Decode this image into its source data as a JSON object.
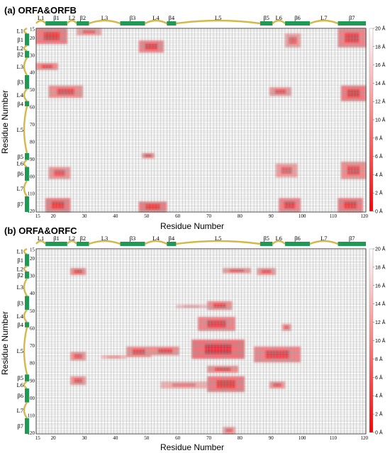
{
  "colors": {
    "grid": "#9a9a9a",
    "loop": "#d4b84a",
    "strand": "#1e9a55",
    "contact": "#e8141c",
    "cb_top": "#ffffff",
    "cb_bottom": "#ff0000"
  },
  "colorbar_labels": [
    "20 Å",
    "18 Å",
    "16 Å",
    "14 Å",
    "12 Å",
    "10 Å",
    "8 Å",
    "6 Å",
    "4 Å",
    "2 Å",
    "0 Å"
  ],
  "secondary_structure": [
    {
      "type": "loop",
      "label": "L1",
      "start": 15,
      "end": 18
    },
    {
      "type": "strand",
      "label": "β1",
      "start": 18,
      "end": 25
    },
    {
      "type": "loop",
      "label": "L2",
      "start": 25,
      "end": 28
    },
    {
      "type": "strand",
      "label": "β2",
      "start": 28,
      "end": 32
    },
    {
      "type": "loop",
      "label": "L3",
      "start": 32,
      "end": 42
    },
    {
      "type": "strand",
      "label": "β3",
      "start": 42,
      "end": 50
    },
    {
      "type": "loop",
      "label": "L4",
      "start": 50,
      "end": 57
    },
    {
      "type": "strand",
      "label": "β4",
      "start": 57,
      "end": 60
    },
    {
      "type": "loop",
      "label": "L5",
      "start": 60,
      "end": 87
    },
    {
      "type": "strand",
      "label": "β5",
      "start": 87,
      "end": 91
    },
    {
      "type": "loop",
      "label": "L6",
      "start": 91,
      "end": 95
    },
    {
      "type": "strand",
      "label": "β6",
      "start": 95,
      "end": 103
    },
    {
      "type": "loop",
      "label": "L7",
      "start": 103,
      "end": 112
    },
    {
      "type": "strand",
      "label": "β7",
      "start": 112,
      "end": 121
    }
  ],
  "chart_data": [
    {
      "type": "heatmap",
      "title": "(a) ORFA&ORFB",
      "xlabel": "Residue Number",
      "ylabel": "Residue Number",
      "xlim": [
        15,
        121
      ],
      "ylim": [
        15,
        121
      ],
      "xticks": [
        15,
        20,
        30,
        40,
        50,
        60,
        70,
        80,
        90,
        100,
        110,
        120
      ],
      "yticks": [
        15,
        20,
        30,
        40,
        50,
        60,
        70,
        80,
        90,
        100,
        110,
        120
      ],
      "color_range": [
        0,
        20
      ],
      "contact_regions": [
        {
          "x": [
            15,
            25
          ],
          "y": [
            15,
            24
          ],
          "dist": 6
        },
        {
          "x": [
            28,
            36
          ],
          "y": [
            15,
            19
          ],
          "dist": 10
        },
        {
          "x": [
            15,
            22
          ],
          "y": [
            35,
            39
          ],
          "dist": 8
        },
        {
          "x": [
            48,
            56
          ],
          "y": [
            22,
            29
          ],
          "dist": 7
        },
        {
          "x": [
            95,
            100
          ],
          "y": [
            18,
            26
          ],
          "dist": 10
        },
        {
          "x": [
            112,
            121
          ],
          "y": [
            15,
            26
          ],
          "dist": 7
        },
        {
          "x": [
            19,
            30
          ],
          "y": [
            48,
            55
          ],
          "dist": 8
        },
        {
          "x": [
            90,
            97
          ],
          "y": [
            49,
            54
          ],
          "dist": 9
        },
        {
          "x": [
            113,
            121
          ],
          "y": [
            48,
            57
          ],
          "dist": 6
        },
        {
          "x": [
            49,
            53
          ],
          "y": [
            87,
            90
          ],
          "dist": 8
        },
        {
          "x": [
            19,
            26
          ],
          "y": [
            95,
            102
          ],
          "dist": 9
        },
        {
          "x": [
            92,
            99
          ],
          "y": [
            93,
            101
          ],
          "dist": 10
        },
        {
          "x": [
            113,
            121
          ],
          "y": [
            92,
            102
          ],
          "dist": 8
        },
        {
          "x": [
            18,
            26
          ],
          "y": [
            113,
            121
          ],
          "dist": 6
        },
        {
          "x": [
            48,
            57
          ],
          "y": [
            115,
            121
          ],
          "dist": 6
        },
        {
          "x": [
            93,
            100
          ],
          "y": [
            113,
            121
          ],
          "dist": 7
        },
        {
          "x": [
            112,
            120
          ],
          "y": [
            113,
            121
          ],
          "dist": 6
        }
      ]
    },
    {
      "type": "heatmap",
      "title": "(b) ORFA&ORFC",
      "xlabel": "Residue Number",
      "ylabel": "Residue Number",
      "xlim": [
        15,
        121
      ],
      "ylim": [
        15,
        121
      ],
      "xticks": [
        15,
        20,
        30,
        40,
        50,
        60,
        70,
        80,
        90,
        100,
        110,
        120
      ],
      "yticks": [
        15,
        20,
        30,
        40,
        50,
        60,
        70,
        80,
        90,
        100,
        110,
        120
      ],
      "color_range": [
        0,
        20
      ],
      "contact_regions": [
        {
          "x": [
            26,
            31
          ],
          "y": [
            26,
            30
          ],
          "dist": 8
        },
        {
          "x": [
            75,
            84
          ],
          "y": [
            26,
            29
          ],
          "dist": 9
        },
        {
          "x": [
            86,
            92
          ],
          "y": [
            26,
            30
          ],
          "dist": 9
        },
        {
          "x": [
            70,
            78
          ],
          "y": [
            45,
            50
          ],
          "dist": 8
        },
        {
          "x": [
            60,
            70
          ],
          "y": [
            47,
            49
          ],
          "dist": 14
        },
        {
          "x": [
            67,
            79
          ],
          "y": [
            54,
            62
          ],
          "dist": 7
        },
        {
          "x": [
            94,
            97
          ],
          "y": [
            58,
            62
          ],
          "dist": 10
        },
        {
          "x": [
            65,
            82
          ],
          "y": [
            67,
            78
          ],
          "dist": 5
        },
        {
          "x": [
            44,
            52
          ],
          "y": [
            71,
            77
          ],
          "dist": 8
        },
        {
          "x": [
            52,
            61
          ],
          "y": [
            71,
            76
          ],
          "dist": 8
        },
        {
          "x": [
            85,
            100
          ],
          "y": [
            71,
            80
          ],
          "dist": 7
        },
        {
          "x": [
            26,
            31
          ],
          "y": [
            74,
            79
          ],
          "dist": 9
        },
        {
          "x": [
            36,
            44
          ],
          "y": [
            76,
            78
          ],
          "dist": 13
        },
        {
          "x": [
            70,
            80
          ],
          "y": [
            82,
            86
          ],
          "dist": 8
        },
        {
          "x": [
            26,
            31
          ],
          "y": [
            88,
            93
          ],
          "dist": 9
        },
        {
          "x": [
            70,
            82
          ],
          "y": [
            88,
            97
          ],
          "dist": 6
        },
        {
          "x": [
            55,
            70
          ],
          "y": [
            91,
            95
          ],
          "dist": 12
        },
        {
          "x": [
            90,
            95
          ],
          "y": [
            91,
            95
          ],
          "dist": 9
        },
        {
          "x": [
            75,
            79
          ],
          "y": [
            117,
            121
          ],
          "dist": 10
        }
      ]
    }
  ]
}
